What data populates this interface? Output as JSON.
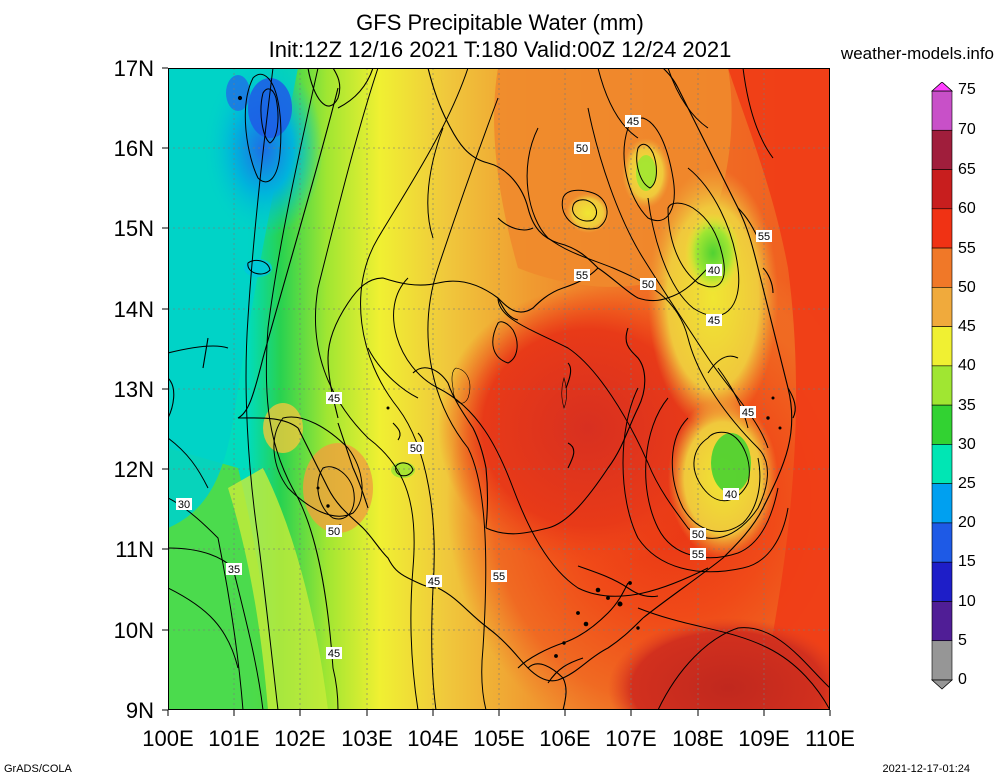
{
  "header": {
    "title_line1": "GFS Precipitable Water (mm)",
    "title_line2": "Init:12Z 12/16 2021 T:180 Valid:00Z 12/24 2021",
    "site": "weather-models.info"
  },
  "footer": {
    "left": "GrADS/COLA",
    "right": "2021-12-17-01:24"
  },
  "map": {
    "lat_labels": [
      "17N",
      "16N",
      "15N",
      "14N",
      "13N",
      "12N",
      "11N",
      "10N",
      "9N"
    ],
    "lon_labels": [
      "100E",
      "101E",
      "102E",
      "103E",
      "104E",
      "105E",
      "106E",
      "107E",
      "108E",
      "109E",
      "110E"
    ],
    "contour_labels": [
      "45",
      "50",
      "55",
      "50",
      "40",
      "55",
      "50",
      "45",
      "45",
      "45",
      "50",
      "40",
      "50",
      "55",
      "30",
      "35",
      "45",
      "55",
      "45",
      "50"
    ]
  },
  "colorbar": {
    "labels": [
      "75",
      "70",
      "65",
      "60",
      "55",
      "50",
      "45",
      "40",
      "35",
      "30",
      "25",
      "20",
      "15",
      "10",
      "5",
      "0"
    ],
    "colors": [
      "#f000f0",
      "#c850c8",
      "#a01e3c",
      "#c81e1e",
      "#f03214",
      "#f07828",
      "#f0aa3c",
      "#f0f032",
      "#a0e632",
      "#32d232",
      "#00e6b4",
      "#00a0f0",
      "#1e5ae6",
      "#1e1ec8",
      "#501e96",
      "#969696"
    ]
  }
}
